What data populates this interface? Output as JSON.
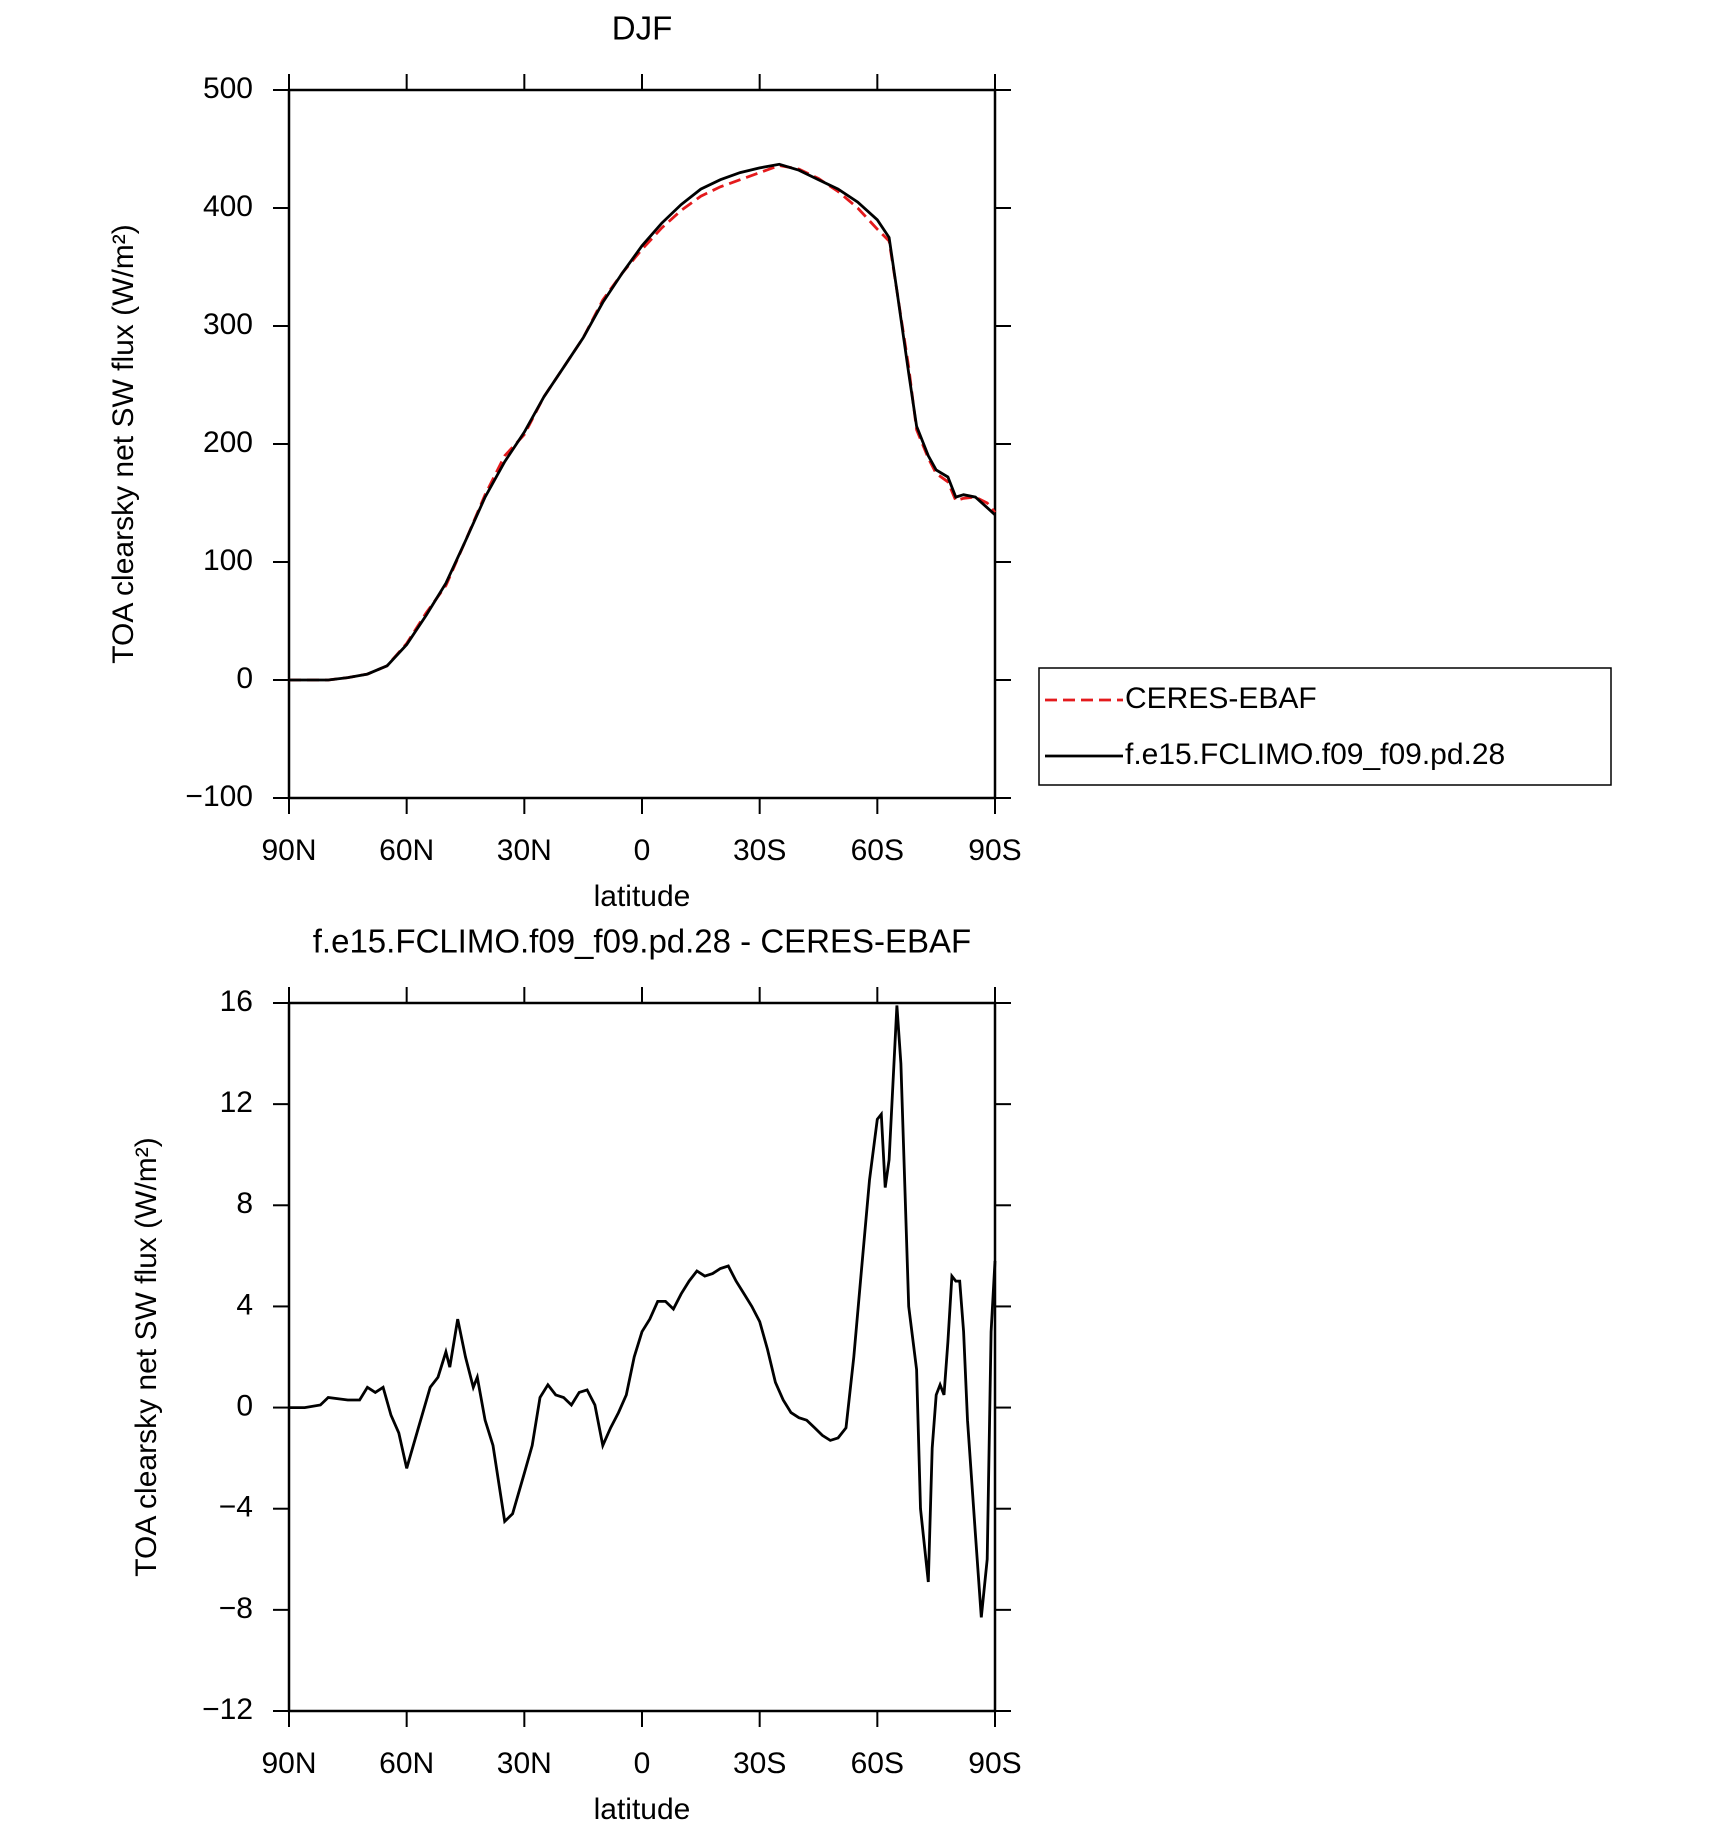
{
  "chart_data": [
    {
      "type": "line",
      "title": "DJF",
      "xlabel": "latitude",
      "ylabel": "TOA clearsky net SW flux (W/m²)",
      "x": [
        90,
        85,
        80,
        75,
        70,
        65,
        60,
        55,
        50,
        45,
        40,
        35,
        30,
        25,
        20,
        15,
        10,
        5,
        0,
        -5,
        -10,
        -15,
        -20,
        -25,
        -30,
        -35,
        -40,
        -45,
        -50,
        -55,
        -60,
        -63,
        -65,
        -68,
        -70,
        -73,
        -75,
        -78,
        -80,
        -82,
        -85,
        -88,
        -90
      ],
      "series": [
        {
          "name": "CERES-EBAF",
          "color": "#e41a1c",
          "dash": true,
          "values": [
            0,
            0,
            0,
            2,
            5,
            12,
            31,
            57,
            80,
            118,
            157,
            190,
            208,
            240,
            265,
            290,
            322,
            345,
            365,
            383,
            398,
            410,
            418,
            424,
            430,
            436,
            433,
            425,
            414,
            400,
            382,
            372,
            330,
            265,
            212,
            188,
            175,
            168,
            152,
            154,
            155,
            150,
            142
          ]
        },
        {
          "name": "f.e15.FCLIMO.f09_f09.pd.28",
          "color": "#000000",
          "dash": false,
          "values": [
            0,
            0,
            0,
            2,
            5,
            12,
            30,
            55,
            82,
            118,
            155,
            185,
            210,
            240,
            265,
            290,
            320,
            345,
            368,
            387,
            403,
            416,
            424,
            430,
            434,
            437,
            432,
            424,
            416,
            405,
            390,
            375,
            330,
            260,
            215,
            190,
            178,
            172,
            155,
            157,
            155,
            146,
            140
          ]
        }
      ],
      "xlim": [
        90,
        -90
      ],
      "xticks": [
        {
          "value": 90,
          "label": "90N"
        },
        {
          "value": 60,
          "label": "60N"
        },
        {
          "value": 30,
          "label": "30N"
        },
        0,
        {
          "value": -30,
          "label": "30S"
        },
        {
          "value": -60,
          "label": "60S"
        },
        {
          "value": -90,
          "label": "90S"
        }
      ],
      "ylim": [
        -100,
        500
      ],
      "yticks": [
        {
          "value": -100,
          "label": "−100"
        },
        0,
        100,
        200,
        300,
        400,
        500
      ],
      "legend": "right"
    },
    {
      "type": "line",
      "title": "f.e15.FCLIMO.f09_f09.pd.28 - CERES-EBAF",
      "xlabel": "latitude",
      "ylabel": "TOA clearsky net SW flux (W/m²)",
      "x": [
        90,
        86,
        82,
        80,
        75,
        72,
        70,
        68,
        66,
        64,
        62,
        60,
        57,
        54,
        52,
        50,
        49,
        47,
        45,
        43,
        42,
        40,
        38,
        35,
        33,
        30,
        28,
        26,
        24,
        22,
        20,
        18,
        16,
        14,
        12,
        10,
        8,
        6,
        4,
        2,
        0,
        -2,
        -4,
        -6,
        -8,
        -10,
        -12,
        -14,
        -16,
        -18,
        -20,
        -22,
        -24,
        -26,
        -28,
        -30,
        -32,
        -34,
        -36,
        -38,
        -40,
        -42,
        -44,
        -46,
        -48,
        -50,
        -52,
        -54,
        -56,
        -58,
        -60,
        -61,
        -62,
        -63,
        -65,
        -66,
        -68,
        -70,
        -71,
        -73,
        -74,
        -75,
        -76,
        -77,
        -78,
        -79,
        -80,
        -81,
        -82,
        -83,
        -85,
        -86.5,
        -88,
        -89,
        -90
      ],
      "series": [
        {
          "color": "#000000",
          "values": [
            0,
            0,
            0.1,
            0.4,
            0.3,
            0.3,
            0.8,
            0.6,
            0.8,
            -0.3,
            -1,
            -2.4,
            -0.8,
            0.8,
            1.2,
            2.2,
            1.6,
            3.5,
            2,
            0.8,
            1.2,
            -0.5,
            -1.5,
            -4.5,
            -4.2,
            -2.6,
            -1.5,
            0.4,
            0.9,
            0.5,
            0.4,
            0.1,
            0.6,
            0.7,
            0.1,
            -1.5,
            -0.8,
            -0.2,
            0.5,
            2,
            3,
            3.5,
            4.2,
            4.2,
            3.9,
            4.5,
            5,
            5.4,
            5.2,
            5.3,
            5.5,
            5.6,
            5,
            4.5,
            4,
            3.4,
            2.3,
            1,
            0.3,
            -0.2,
            -0.4,
            -0.5,
            -0.8,
            -1.1,
            -1.3,
            -1.2,
            -0.8,
            2,
            5.5,
            9,
            11.4,
            11.6,
            8.7,
            9.8,
            15.9,
            13.6,
            4,
            1.5,
            -4,
            -6.9,
            -1.6,
            0.5,
            0.9,
            0.5,
            2.6,
            5.2,
            5,
            5,
            3,
            -0.5,
            -5,
            -8.3,
            -6,
            3,
            5.8
          ]
        }
      ],
      "xlim": [
        90,
        -90
      ],
      "xticks": [
        {
          "value": 90,
          "label": "90N"
        },
        {
          "value": 60,
          "label": "60N"
        },
        {
          "value": 30,
          "label": "30N"
        },
        0,
        {
          "value": -30,
          "label": "30S"
        },
        {
          "value": -60,
          "label": "60S"
        },
        {
          "value": -90,
          "label": "90S"
        }
      ],
      "ylim": [
        -12,
        16
      ],
      "yticks": [
        {
          "value": -12,
          "label": "−12"
        },
        {
          "value": -8,
          "label": "−8"
        },
        {
          "value": -4,
          "label": "−4"
        },
        0,
        4,
        8,
        12,
        16
      ]
    }
  ]
}
